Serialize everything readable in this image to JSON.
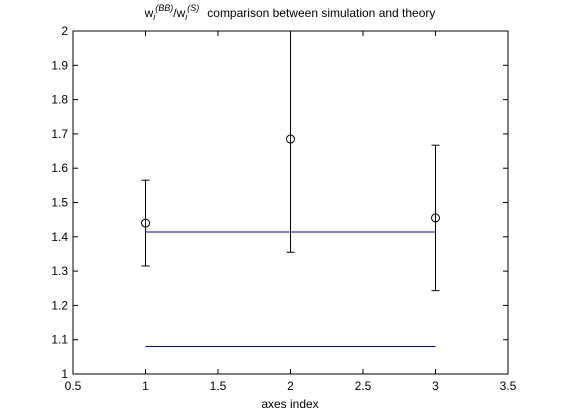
{
  "chart_data": {
    "type": "scatter",
    "title": {
      "ratio": "w",
      "ratio_super1": "(BB)",
      "ratio_sub1": "i",
      "ratio_slash": "/",
      "ratio2": "w",
      "ratio_super2": "(S)",
      "ratio_sub2": "i",
      "rest": "comparison between simulation and theory"
    },
    "xlabel": "axes index",
    "ylabel": "",
    "xlim": [
      0.5,
      3.5
    ],
    "ylim": [
      1,
      2
    ],
    "x_ticks": [
      0.5,
      1,
      1.5,
      2,
      2.5,
      3,
      3.5
    ],
    "x_tick_labels": [
      "0.5",
      "1",
      "1.5",
      "2",
      "2.5",
      "3",
      "3.5"
    ],
    "y_ticks": [
      1,
      1.1,
      1.2,
      1.3,
      1.4,
      1.5,
      1.6,
      1.7,
      1.8,
      1.9,
      2
    ],
    "y_tick_labels": [
      "1",
      "1.1",
      "1.2",
      "1.3",
      "1.4",
      "1.5",
      "1.6",
      "1.7",
      "1.8",
      "1.9",
      "2"
    ],
    "grid": false,
    "series": [
      {
        "kind": "errorbar",
        "color": "#000000",
        "marker": "circle",
        "x": [
          1,
          2,
          3
        ],
        "y": [
          1.44,
          1.685,
          1.455
        ],
        "lower": [
          1.315,
          1.355,
          1.243
        ],
        "upper": [
          1.565,
          2.0,
          1.667
        ]
      },
      {
        "kind": "line",
        "color": "#00007f",
        "x": [
          1,
          3
        ],
        "y": [
          1.414,
          1.414
        ]
      },
      {
        "kind": "line",
        "color": "#00007f",
        "x": [
          1,
          3
        ],
        "y": [
          1.08,
          1.08
        ]
      }
    ]
  }
}
